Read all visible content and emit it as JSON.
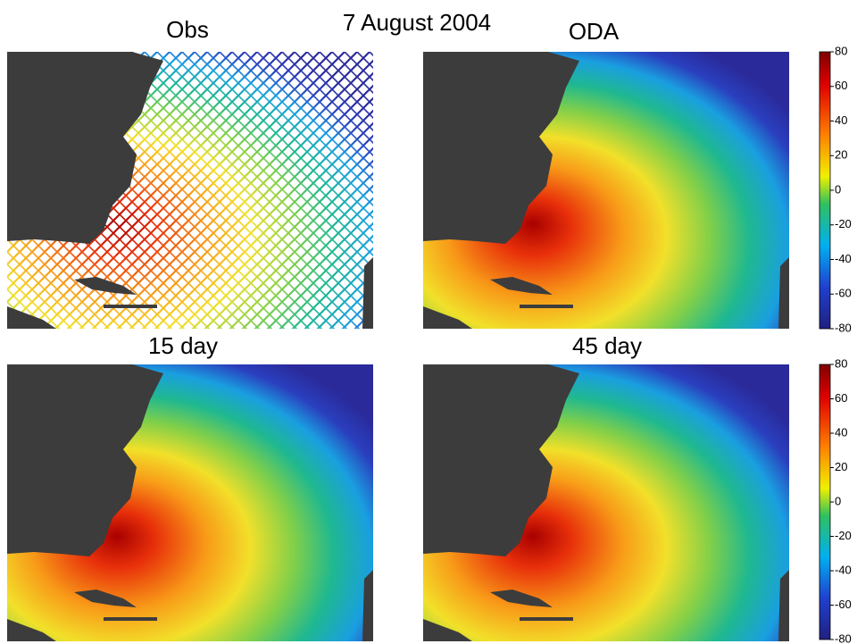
{
  "title": "7 August 2004",
  "panels": [
    {
      "title": "Obs"
    },
    {
      "title": "ODA"
    },
    {
      "title": "15 day"
    },
    {
      "title": "45 day"
    }
  ],
  "colorbars": [
    {
      "ylim": [
        -80,
        80
      ],
      "yticks": [
        80,
        60,
        40,
        20,
        0,
        -20,
        -40,
        -60,
        -80
      ]
    },
    {
      "ylim": [
        -80,
        80
      ],
      "yticks": [
        80,
        60,
        40,
        20,
        0,
        -20,
        -40,
        -60,
        -80
      ]
    }
  ]
}
